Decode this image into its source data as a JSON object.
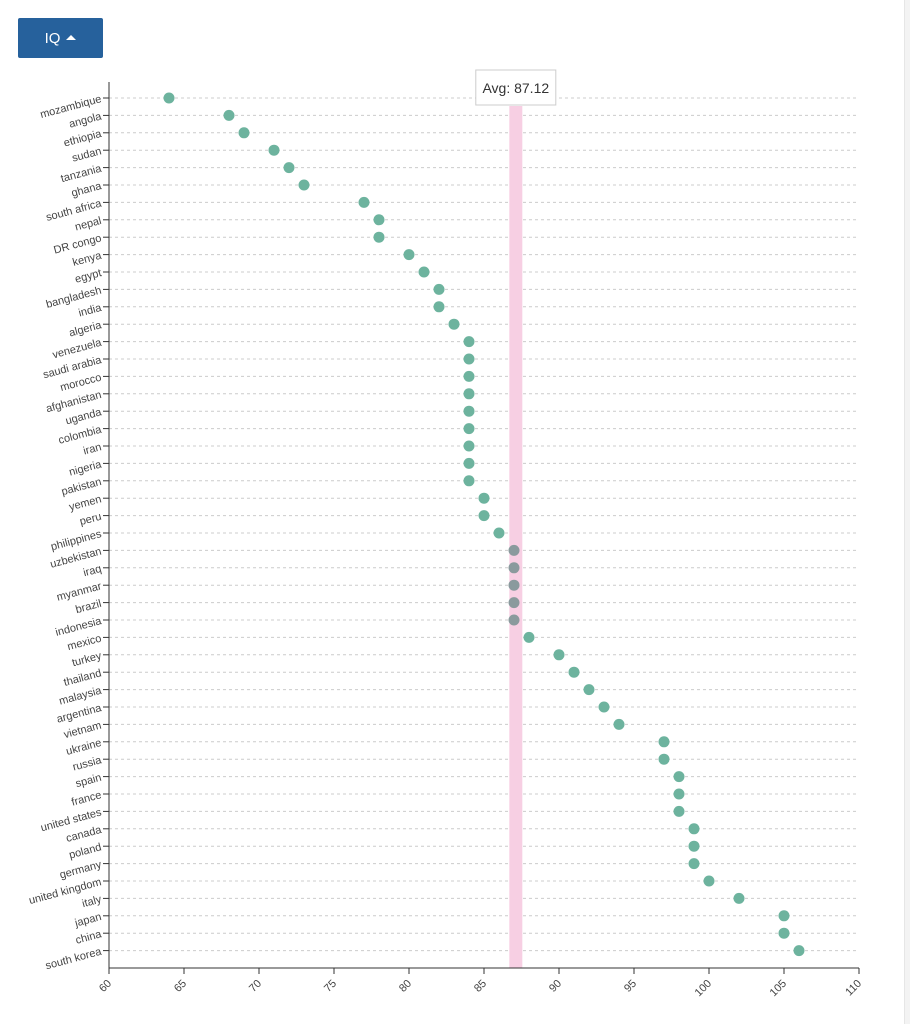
{
  "sort_button": {
    "label": "IQ"
  },
  "colors": {
    "button": "#26619c",
    "point": "#6db39e",
    "point_near_avg": "#8a9a9d",
    "avg_band": "#f7cfe3",
    "grid": "#cccccc"
  },
  "chart_data": {
    "type": "scatter",
    "title": "",
    "xlabel": "",
    "ylabel": "",
    "xlim": [
      60,
      110
    ],
    "x_ticks": [
      60,
      65,
      70,
      75,
      80,
      85,
      90,
      95,
      100,
      105,
      110
    ],
    "grid": "horizontal dashed",
    "average": {
      "label": "Avg: 87.12",
      "value": 87.12
    },
    "categories": [
      "mozambique",
      "angola",
      "ethiopia",
      "sudan",
      "tanzania",
      "ghana",
      "south africa",
      "nepal",
      "DR congo",
      "kenya",
      "egypt",
      "bangladesh",
      "india",
      "algeria",
      "venezuela",
      "saudi arabia",
      "morocco",
      "afghanistan",
      "uganda",
      "colombia",
      "iran",
      "nigeria",
      "pakistan",
      "yemen",
      "peru",
      "philippines",
      "uzbekistan",
      "iraq",
      "myanmar",
      "brazil",
      "indonesia",
      "mexico",
      "turkey",
      "thailand",
      "malaysia",
      "argentina",
      "vietnam",
      "ukraine",
      "russia",
      "spain",
      "france",
      "united states",
      "canada",
      "poland",
      "germany",
      "united kingdom",
      "italy",
      "japan",
      "china",
      "south korea"
    ],
    "values": [
      64,
      68,
      69,
      71,
      72,
      73,
      77,
      78,
      78,
      80,
      81,
      82,
      82,
      83,
      84,
      84,
      84,
      84,
      84,
      84,
      84,
      84,
      84,
      85,
      85,
      86,
      87,
      87,
      87,
      87,
      87,
      88,
      90,
      91,
      92,
      93,
      94,
      97,
      97,
      98,
      98,
      98,
      99,
      99,
      99,
      100,
      102,
      105,
      105,
      106
    ]
  }
}
